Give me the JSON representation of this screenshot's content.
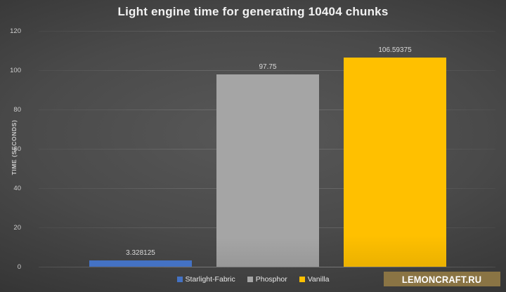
{
  "title": "Light engine time for generating 10404 chunks",
  "watermark": {
    "text": "LEMONCRAFT.RU",
    "background_color": "#8a7444",
    "text_color": "#ffffff"
  },
  "chart_data": {
    "type": "bar",
    "title": "Light engine time for generating 10404 chunks",
    "categories": [
      "Starlight-Fabric",
      "Phosphor",
      "Vanilla"
    ],
    "values": [
      3.328125,
      97.75,
      106.59375
    ],
    "value_labels": [
      "3.328125",
      "97.75",
      "106.59375"
    ],
    "bar_colors": [
      "#4472C4",
      "#A5A5A5",
      "#FFC000"
    ],
    "xlabel": "",
    "ylabel": "TIME (SECONDS)",
    "ylim": [
      0,
      120
    ],
    "yticks": [
      0,
      20,
      40,
      60,
      80,
      100,
      120
    ],
    "grid": true,
    "legend_position": "bottom",
    "legend_entries": [
      "Starlight-Fabric",
      "Phosphor",
      "Vanilla"
    ],
    "background": "dark-gradient"
  }
}
